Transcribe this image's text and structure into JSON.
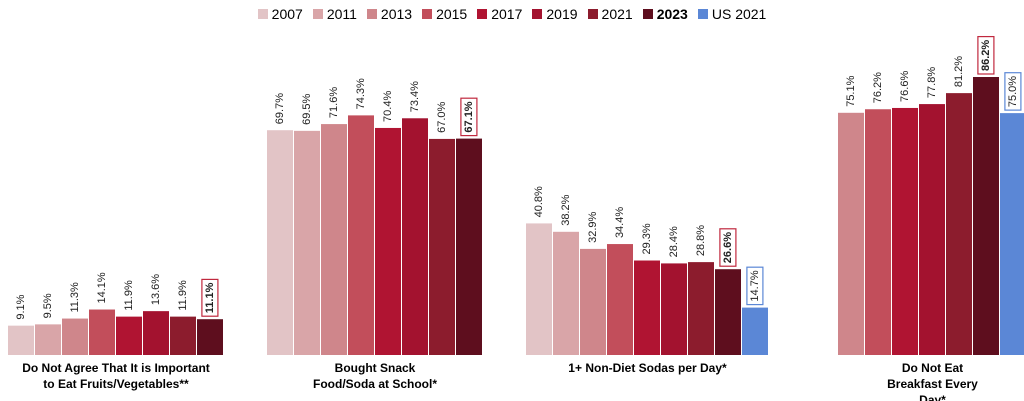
{
  "chart_data": {
    "type": "bar",
    "categories": [
      "Do Not Agree That It is Important\nto Eat Fruits/Vegetables**",
      "Bought Snack\nFood/Soda at School*",
      "1+ Non-Diet Sodas per Day*",
      "Do Not Eat Breakfast Every Day*"
    ],
    "series": [
      {
        "name": "2007",
        "color": "#e2c4c6",
        "values": [
          9.1,
          69.7,
          40.8,
          null
        ],
        "value_labels": [
          "9.1%",
          "69.7%",
          "40.8%",
          null
        ]
      },
      {
        "name": "2011",
        "color": "#d9a5a8",
        "values": [
          9.5,
          69.5,
          38.2,
          null
        ],
        "value_labels": [
          "9.5%",
          "69.5%",
          "38.2%",
          null
        ]
      },
      {
        "name": "2013",
        "color": "#cf868b",
        "values": [
          11.3,
          71.6,
          32.9,
          75.1
        ],
        "value_labels": [
          "11.3%",
          "71.6%",
          "32.9%",
          "75.1%"
        ]
      },
      {
        "name": "2015",
        "color": "#c24e5b",
        "values": [
          14.1,
          74.3,
          34.4,
          76.2
        ],
        "value_labels": [
          "14.1%",
          "74.3%",
          "34.4%",
          "76.2%"
        ]
      },
      {
        "name": "2017",
        "color": "#b01432",
        "values": [
          11.9,
          70.4,
          29.3,
          76.6
        ],
        "value_labels": [
          "11.9%",
          "70.4%",
          "29.3%",
          "76.6%"
        ]
      },
      {
        "name": "2019",
        "color": "#a3122f",
        "values": [
          13.6,
          73.4,
          28.4,
          77.8
        ],
        "value_labels": [
          "13.6%",
          "73.4%",
          "28.4%",
          "77.8%"
        ]
      },
      {
        "name": "2021",
        "color": "#8c1c2d",
        "values": [
          11.9,
          67.0,
          28.8,
          81.2
        ],
        "value_labels": [
          "11.9%",
          "67.0%",
          "28.8%",
          "81.2%"
        ]
      },
      {
        "name": "2023",
        "color": "#5e0e1e",
        "bold": true,
        "boxed": true,
        "values": [
          11.1,
          67.1,
          26.6,
          86.2
        ],
        "value_labels": [
          "11.1%",
          "67.1%",
          "26.6%",
          "86.2%"
        ]
      },
      {
        "name": "US 2021",
        "color": "#5b87d6",
        "boxed": true,
        "values": [
          null,
          null,
          14.7,
          75.0
        ],
        "value_labels": [
          null,
          null,
          "14.7%",
          "75.0%"
        ]
      }
    ]
  }
}
